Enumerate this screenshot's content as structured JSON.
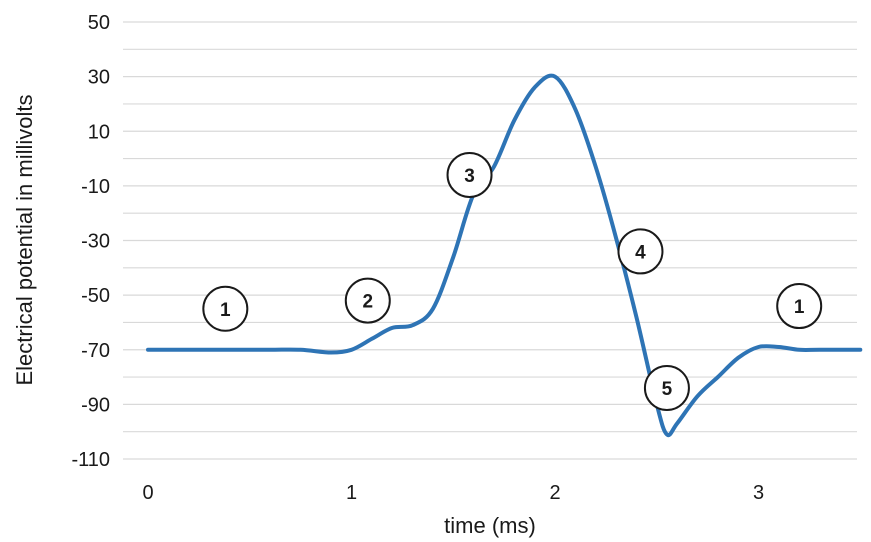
{
  "chart_data": {
    "type": "line",
    "title": "",
    "xlabel": "time (ms)",
    "ylabel": "Electrical potential in millivolts",
    "xlim": [
      0,
      3.5
    ],
    "ylim": [
      -110,
      50
    ],
    "x_ticks": [
      0,
      1,
      2,
      3
    ],
    "y_ticks": [
      50,
      30,
      10,
      -10,
      -30,
      -50,
      -70,
      -90,
      -110
    ],
    "grid": true,
    "legend": "none",
    "series": [
      {
        "color": "#2e74b5",
        "x": [
          0,
          0.2,
          0.4,
          0.6,
          0.75,
          0.9,
          1.0,
          1.1,
          1.2,
          1.3,
          1.4,
          1.5,
          1.6,
          1.7,
          1.8,
          1.9,
          2.0,
          2.1,
          2.2,
          2.3,
          2.4,
          2.5,
          2.55,
          2.6,
          2.7,
          2.8,
          2.9,
          3.0,
          3.1,
          3.2,
          3.3,
          3.5
        ],
        "y": [
          -70,
          -70,
          -70,
          -70,
          -70,
          -71,
          -70,
          -66,
          -62,
          -61,
          -55,
          -36,
          -13,
          -3,
          14,
          26,
          30,
          18,
          -3,
          -29,
          -58,
          -90,
          -101,
          -97,
          -87,
          -80,
          -73,
          -69,
          -69,
          -70,
          -70,
          -70
        ]
      }
    ],
    "annotations": [
      {
        "label": "1",
        "x": 0.38,
        "y": -55
      },
      {
        "label": "2",
        "x": 1.08,
        "y": -52
      },
      {
        "label": "3",
        "x": 1.58,
        "y": -6
      },
      {
        "label": "4",
        "x": 2.42,
        "y": -34
      },
      {
        "label": "5",
        "x": 2.55,
        "y": -84
      },
      {
        "label": "1",
        "x": 3.2,
        "y": -54
      }
    ]
  }
}
